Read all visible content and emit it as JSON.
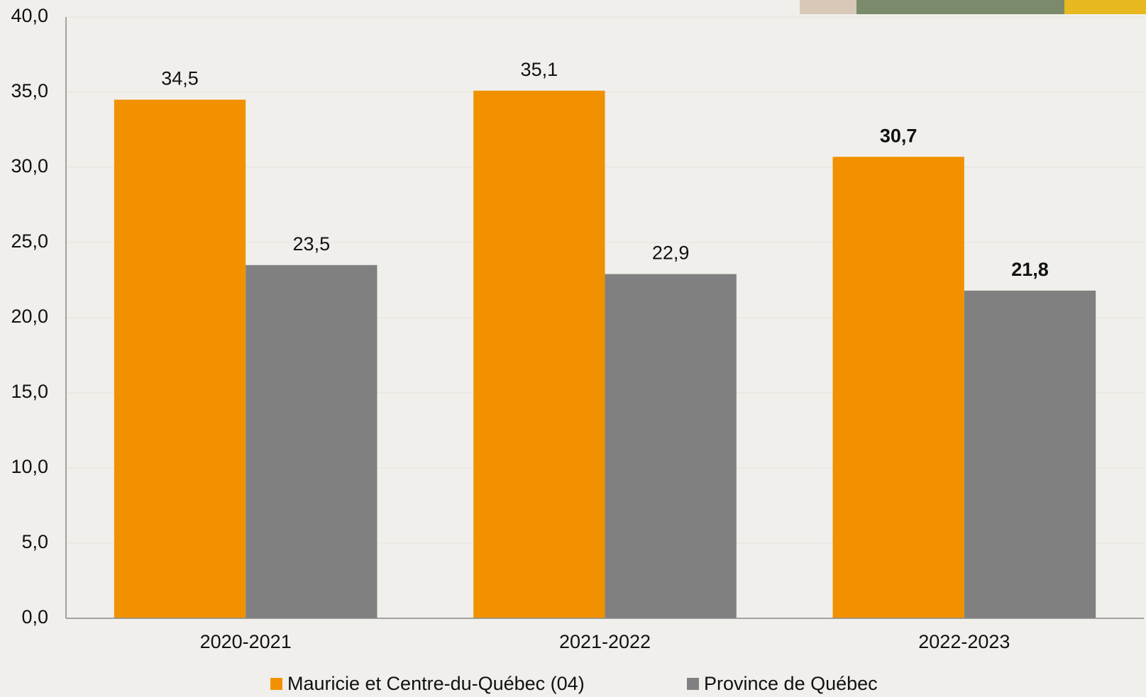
{
  "chart_data": {
    "type": "bar",
    "categories": [
      "2020-2021",
      "2021-2022",
      "2022-2023"
    ],
    "series": [
      {
        "name": "Mauricie et Centre-du-Québec (04)",
        "color": "#f29100",
        "values": [
          34.5,
          35.1,
          30.7
        ],
        "value_labels": [
          "34,5",
          "35,1",
          "30,7"
        ]
      },
      {
        "name": "Province de Québec",
        "color": "#808080",
        "values": [
          23.5,
          22.9,
          21.8
        ],
        "value_labels": [
          "23,5",
          "22,9",
          "21,8"
        ]
      }
    ],
    "ylim": [
      0,
      40
    ],
    "yticks": [
      {
        "value": 0,
        "label": "0,0"
      },
      {
        "value": 5,
        "label": "5,0"
      },
      {
        "value": 10,
        "label": "10,0"
      },
      {
        "value": 15,
        "label": "15,0"
      },
      {
        "value": 20,
        "label": "20,0"
      },
      {
        "value": 25,
        "label": "25,0"
      },
      {
        "value": 30,
        "label": "30,0"
      },
      {
        "value": 35,
        "label": "35,0"
      },
      {
        "value": 40,
        "label": "40,0"
      }
    ],
    "grid": true,
    "legend": "bottom"
  }
}
